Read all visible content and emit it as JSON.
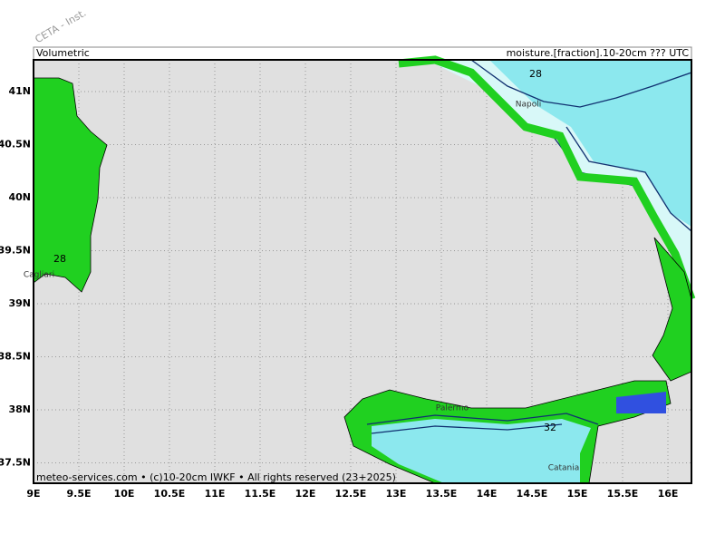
{
  "header": {
    "watermark": "CETA - Inst.",
    "left": "Volumetric",
    "right": "moisture.[fraction].10-20cm ??? UTC"
  },
  "axes": {
    "lon_labels": [
      "9E",
      "9.5E",
      "10E",
      "10.5E",
      "11E",
      "11.5E",
      "12E",
      "12.5E",
      "13E",
      "13.5E",
      "14E",
      "14.5E",
      "15E",
      "15.5E",
      "16E"
    ],
    "lat_labels": [
      "41N",
      "40.5N",
      "40N",
      "39.5N",
      "39N",
      "38.5N",
      "38N",
      "37.5N"
    ]
  },
  "map": {
    "contour_labels": [
      "28",
      "28",
      "32"
    ],
    "places": [
      "Napoli",
      "Cagliari",
      "Palermo",
      "Catania"
    ]
  },
  "footer": "meteo-services.com • (c)10-20cm IWKF • All rights reserved (23+2025)"
}
